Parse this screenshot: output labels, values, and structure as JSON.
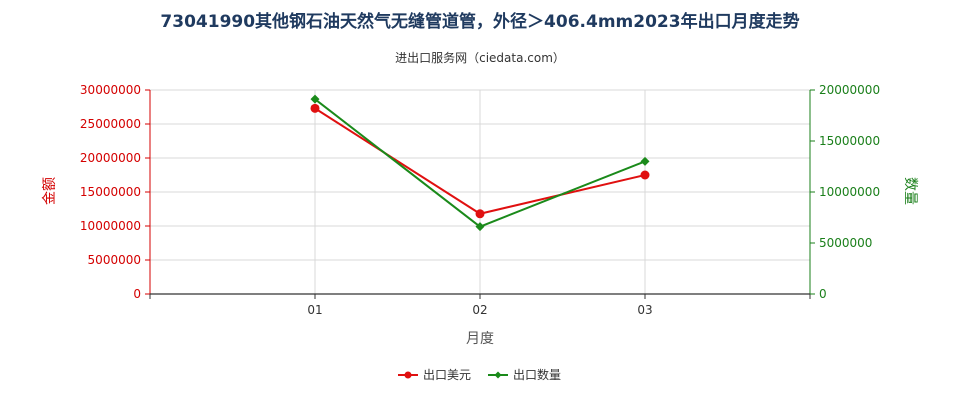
{
  "chart_data": {
    "type": "line",
    "title": "73041990其他钢石油天然气无缝管道管，外径＞406.4mm2023年出口月度走势",
    "subtitle": "进出口服务网（ciedata.com）",
    "xlabel": "月度",
    "ylabel_left": "金额",
    "ylabel_right": "数量",
    "categories": [
      "01",
      "02",
      "03"
    ],
    "y_left_ticks": [
      "0",
      "5000000",
      "10000000",
      "15000000",
      "20000000",
      "25000000",
      "30000000"
    ],
    "y_right_ticks": [
      "0",
      "5000000",
      "10000000",
      "15000000",
      "20000000"
    ],
    "ylim_left": [
      0,
      30000000
    ],
    "ylim_right": [
      0,
      20000000
    ],
    "grid": true,
    "legend_position": "bottom",
    "series": [
      {
        "name": "出口美元",
        "axis": "left",
        "color": "#e01010",
        "marker": "circle",
        "values": [
          27300000,
          11800000,
          17500000
        ]
      },
      {
        "name": "出口数量",
        "axis": "right",
        "color": "#1a8a1a",
        "marker": "diamond",
        "values": [
          19100000,
          6600000,
          13000000
        ]
      }
    ]
  }
}
